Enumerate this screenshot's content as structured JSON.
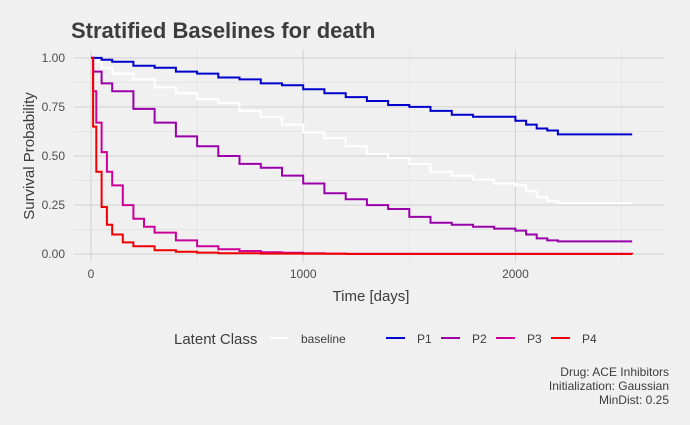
{
  "chart_data": {
    "type": "line",
    "title": "Stratified Baselines for death",
    "xlabel": "Time [days]",
    "ylabel": "Survival Probability",
    "xlim": [
      -80,
      2700
    ],
    "ylim": [
      -0.04,
      1.04
    ],
    "x_ticks": [
      0,
      1000,
      2000
    ],
    "x_tick_labels": [
      "0",
      "1000",
      "2000"
    ],
    "y_ticks": [
      0,
      0.25,
      0.5,
      0.75,
      1.0
    ],
    "y_tick_labels": [
      "0.00",
      "0.25",
      "0.50",
      "0.75",
      "1.00"
    ],
    "grid": true,
    "legend_title": "Latent Class",
    "legend_position": "bottom",
    "series": [
      {
        "name": "baseline",
        "color": "#ffffff",
        "x": [
          0,
          10,
          50,
          100,
          200,
          300,
          400,
          500,
          600,
          700,
          800,
          900,
          1000,
          1100,
          1200,
          1300,
          1400,
          1500,
          1600,
          1700,
          1800,
          1900,
          2000,
          2050,
          2100,
          2150,
          2200,
          2550
        ],
        "y": [
          1.0,
          0.98,
          0.95,
          0.92,
          0.89,
          0.85,
          0.82,
          0.79,
          0.77,
          0.73,
          0.7,
          0.66,
          0.62,
          0.59,
          0.55,
          0.51,
          0.49,
          0.46,
          0.42,
          0.4,
          0.38,
          0.36,
          0.35,
          0.32,
          0.29,
          0.27,
          0.26,
          0.26
        ]
      },
      {
        "name": "P1",
        "color": "#0000cc",
        "x": [
          0,
          50,
          100,
          200,
          300,
          400,
          500,
          600,
          700,
          800,
          900,
          1000,
          1100,
          1200,
          1300,
          1400,
          1500,
          1600,
          1700,
          1800,
          1900,
          2000,
          2050,
          2100,
          2150,
          2200,
          2550
        ],
        "y": [
          1.0,
          0.99,
          0.98,
          0.96,
          0.95,
          0.93,
          0.92,
          0.9,
          0.89,
          0.87,
          0.86,
          0.84,
          0.82,
          0.8,
          0.78,
          0.76,
          0.75,
          0.73,
          0.71,
          0.7,
          0.7,
          0.68,
          0.66,
          0.64,
          0.63,
          0.61,
          0.61
        ]
      },
      {
        "name": "P2",
        "color": "#9900aa",
        "x": [
          0,
          10,
          50,
          100,
          200,
          300,
          400,
          500,
          600,
          700,
          800,
          900,
          1000,
          1100,
          1200,
          1300,
          1400,
          1500,
          1600,
          1700,
          1800,
          1900,
          2000,
          2050,
          2100,
          2150,
          2200,
          2550
        ],
        "y": [
          1.0,
          0.93,
          0.87,
          0.83,
          0.74,
          0.67,
          0.6,
          0.55,
          0.5,
          0.46,
          0.44,
          0.4,
          0.36,
          0.31,
          0.28,
          0.25,
          0.23,
          0.19,
          0.16,
          0.15,
          0.14,
          0.13,
          0.12,
          0.1,
          0.08,
          0.07,
          0.065,
          0.065
        ]
      },
      {
        "name": "P3",
        "color": "#cc0099",
        "x": [
          0,
          10,
          25,
          50,
          75,
          100,
          150,
          200,
          250,
          300,
          400,
          500,
          600,
          700,
          800,
          900,
          1000,
          1100,
          1200,
          2550
        ],
        "y": [
          1.0,
          0.83,
          0.67,
          0.52,
          0.42,
          0.35,
          0.25,
          0.18,
          0.14,
          0.11,
          0.07,
          0.04,
          0.025,
          0.016,
          0.01,
          0.007,
          0.005,
          0.003,
          0.002,
          0.001
        ]
      },
      {
        "name": "P4",
        "color": "#ee0000",
        "x": [
          0,
          10,
          25,
          50,
          75,
          100,
          150,
          200,
          300,
          400,
          500,
          600,
          800,
          1000,
          1200,
          2550
        ],
        "y": [
          1.0,
          0.65,
          0.42,
          0.24,
          0.15,
          0.1,
          0.06,
          0.04,
          0.02,
          0.012,
          0.008,
          0.005,
          0.003,
          0.002,
          0.001,
          0.0
        ]
      }
    ]
  },
  "caption": {
    "lines": [
      "Drug: ACE Inhibitors",
      "Initialization: Gaussian",
      "MinDist: 0.25"
    ]
  }
}
